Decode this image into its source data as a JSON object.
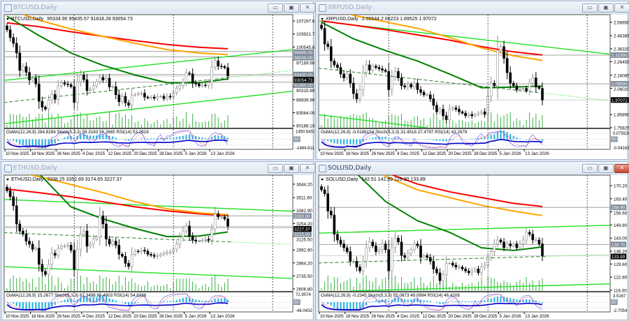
{
  "colors": {
    "ma_slow": "#ff0000",
    "ma_mid": "#ffa500",
    "ma_fast": "#008000",
    "trendline": "#22e022",
    "bull_body": "#ffffff",
    "bear_body": "#000000",
    "osma": "#2ab7ea",
    "rsi": "#0000c8",
    "stoch_main": "#6a6aff",
    "stoch_signal": "#ff3030"
  },
  "time_axis": [
    "10 Nov 2025",
    "18 Nov 2025",
    "26 Nov 2025",
    "4 Dec 2025",
    "12 Dec 2025",
    "20 Dec 2025",
    "28 Dec 2025",
    "5 Jan 2026",
    "13 Jan 2026"
  ],
  "window_buttons": {
    "minimize": "▭",
    "restore": "▣",
    "close": "✕"
  },
  "windows": [
    {
      "title": "BTCUSD,Daily",
      "active": false,
      "symbol": "BTCUSD,Daily",
      "info": "95334.90 95435.57 91818.28 93054.73",
      "ylim": [
        79677,
        108561
      ],
      "ticks": [
        "107297.60",
        "103921.70",
        "100545.80",
        "97169.90",
        "90315.80",
        "86939.90",
        "83564.00",
        "80188.10"
      ],
      "levels": [
        "99400.00",
        "98000.00",
        "93430.00",
        "91450.00"
      ],
      "current": "93054.73",
      "closes": [
        105000,
        103000,
        101500,
        99000,
        94500,
        95500,
        94000,
        92000,
        92500,
        91000,
        86500,
        85000,
        84500,
        86800,
        88300,
        87000,
        90500,
        91300,
        91000,
        90800,
        90300,
        86200,
        91500,
        93300,
        92100,
        89300,
        89600,
        90500,
        91600,
        92700,
        92000,
        92500,
        90200,
        90300,
        88200,
        86400,
        87800,
        86100,
        85500,
        88100,
        88300,
        88500,
        88600,
        87600,
        87400,
        87600,
        87300,
        87700,
        87800,
        87200,
        87800,
        87600,
        88800,
        89900,
        90600,
        91500,
        93800,
        93600,
        91200,
        91000,
        90500,
        90700,
        90600,
        91300,
        95400,
        97000,
        95600,
        95500,
        95200,
        93054.73
      ],
      "ma_dates": [
        "2025-11-10",
        "2025-11-20",
        "2025-11-30",
        "2025-12-10",
        "2025-12-20",
        "2025-12-30",
        "2026-01-09",
        "2026-01-18"
      ],
      "ma_slow": [
        106800,
        105800,
        104500,
        103300,
        102200,
        101200,
        100500,
        100100
      ],
      "ma_mid": [
        110500,
        107500,
        105200,
        103300,
        101500,
        99900,
        99000,
        98600
      ],
      "ma_fast": [
        108500,
        103500,
        99000,
        95800,
        93300,
        91300,
        91300,
        92300
      ],
      "trendlines": [
        {
          "style": "solid",
          "points": [
            [
              "2025-11-09",
              91900
            ],
            [
              "2026-01-22",
              98450
            ]
          ]
        },
        {
          "style": "dashed",
          "points": [
            [
              "2025-11-09",
              86200
            ],
            [
              "2026-01-22",
              93000
            ]
          ]
        },
        {
          "style": "solid",
          "points": [
            [
              "2025-11-09",
              80700
            ],
            [
              "2026-01-22",
              87600
            ]
          ]
        }
      ],
      "indicator": {
        "label": "OsMA(12,26,9) 284.8284  Stoch(5,3,3) 59.3183 56.2665  RSI(14) 53.2916",
        "max": "1450.6457",
        "min": "-1484.8111",
        "mid": "50"
      }
    },
    {
      "title": "XRPUSD,Daily",
      "active": false,
      "symbol": "XRPUSD,Daily",
      "info": "2.05544 2.06223 1.89525 1.97072",
      "ylim": [
        1.75825,
        2.6144
      ],
      "ticks": [
        "2.56650",
        "2.46385",
        "2.36320",
        "2.26455",
        "2.16085",
        "2.06020",
        "1.85890",
        "1.75825"
      ],
      "levels": [
        "2.31500",
        "2.09500"
      ],
      "current": "1.97072",
      "closes": [
        2.52,
        2.4,
        2.38,
        2.27,
        2.24,
        2.22,
        2.17,
        2.14,
        2.17,
        2.1,
        2.02,
        1.98,
        2.05,
        2.18,
        2.24,
        2.2,
        2.23,
        2.22,
        2.21,
        2.2,
        2.19,
        2.05,
        2.15,
        2.19,
        2.14,
        2.08,
        2.07,
        2.09,
        2.07,
        2.1,
        2.05,
        2.03,
        2.01,
        2.01,
        1.98,
        1.93,
        1.88,
        1.9,
        1.85,
        1.82,
        1.9,
        1.91,
        1.9,
        1.88,
        1.87,
        1.85,
        1.86,
        1.85,
        1.86,
        1.87,
        1.88,
        1.86,
        2.0,
        2.1,
        2.08,
        2.35,
        2.38,
        2.29,
        2.18,
        2.1,
        2.08,
        2.05,
        2.06,
        2.06,
        2.04,
        2.1,
        2.14,
        2.07,
        2.06,
        1.97072
      ],
      "ma_dates": [
        "2025-11-10",
        "2025-11-20",
        "2025-11-30",
        "2025-12-10",
        "2025-12-20",
        "2025-12-30",
        "2026-01-09",
        "2026-01-18"
      ],
      "ma_slow": [
        2.577,
        2.545,
        2.51,
        2.47,
        2.43,
        2.38,
        2.34,
        2.316
      ],
      "ma_mid": [
        2.7,
        2.62,
        2.57,
        2.52,
        2.45,
        2.37,
        2.31,
        2.274
      ],
      "ma_fast": [
        2.566,
        2.44,
        2.35,
        2.27,
        2.17,
        2.065,
        2.07,
        2.077
      ],
      "trendlines": [
        {
          "style": "solid",
          "points": [
            [
              "2025-11-09",
              2.577
            ],
            [
              "2026-01-22",
              2.37
            ]
          ]
        },
        {
          "style": "dashed",
          "points": [
            [
              "2025-11-09",
              2.215
            ],
            [
              "2026-01-22",
              2.013
            ]
          ]
        },
        {
          "style": "solid",
          "points": [
            [
              "2025-11-09",
              1.858
            ],
            [
              "2025-12-13",
              1.757
            ]
          ]
        }
      ],
      "indicator": {
        "label": "OsMA(12,26,9) -0.0186154  Stoch(5,3,3) 31.4518 27.4797  RSI(14) 43.2679",
        "max": "0.0755265",
        "min": "-0.041633",
        "mid": "50"
      }
    },
    {
      "title": "ETHUSD,Daily",
      "active": false,
      "symbol": "ETHUSD,Daily",
      "info": "3338.25 3352.89 3174.65 3227.37",
      "ylim": [
        2586.2,
        3719.7
      ],
      "ticks": [
        "3644.20",
        "3511.60",
        "3382.90",
        "3254.20",
        "3125.50",
        "2992.90",
        "2864.20",
        "2735.50",
        "2606.80"
      ],
      "levels": [
        "3330.00",
        "3215.00"
      ],
      "current": "3227.37",
      "closes": [
        3580,
        3520,
        3430,
        3250,
        3180,
        3150,
        3080,
        3050,
        3000,
        3010,
        2850,
        2780,
        2750,
        2850,
        2960,
        2940,
        3010,
        3030,
        3030,
        3040,
        2990,
        2800,
        3000,
        3150,
        3180,
        3030,
        3050,
        3100,
        3120,
        3330,
        3250,
        3100,
        3050,
        3080,
        3040,
        2950,
        2930,
        2860,
        2830,
        2950,
        2980,
        2975,
        2990,
        2980,
        2950,
        2940,
        2930,
        2935,
        2950,
        2960,
        2970,
        2970,
        3000,
        3050,
        3120,
        3180,
        3230,
        3130,
        3090,
        3080,
        3080,
        3090,
        3100,
        3090,
        3200,
        3350,
        3320,
        3320,
        3300,
        3227.37
      ],
      "ma_dates": [
        "2025-11-10",
        "2025-11-20",
        "2025-11-30",
        "2025-12-10",
        "2025-12-20",
        "2025-12-30",
        "2026-01-09",
        "2026-01-18"
      ],
      "ma_slow": [
        3596,
        3560,
        3520,
        3470,
        3420,
        3380,
        3350,
        3335
      ],
      "ma_mid": [
        3780,
        3720,
        3640,
        3560,
        3470,
        3400,
        3360,
        3342
      ],
      "ma_fast": [
        3950,
        3750,
        3420,
        3300,
        3205,
        3125,
        3130,
        3171
      ],
      "trendlines": [
        {
          "style": "solid",
          "points": [
            [
              "2025-11-09",
              3493
            ],
            [
              "2026-01-22",
              3397
            ]
          ]
        },
        {
          "style": "dashed",
          "points": [
            [
              "2025-11-09",
              3164
            ],
            [
              "2026-01-22",
              3068
            ]
          ]
        },
        {
          "style": "solid",
          "points": [
            [
              "2025-11-09",
              2827
            ],
            [
              "2026-01-22",
              2731
            ]
          ]
        }
      ],
      "indicator": {
        "label": "OsMA(12,26,9) 15.2677  Stoch(5,3,3) 67.3498 65.4603  RSI(14) 54.6336",
        "max": "72.9074",
        "min": "-46.0432",
        "mid": "50"
      }
    },
    {
      "title": "SOLUSD,Daily",
      "active": true,
      "symbol": "SOLUSD,Daily",
      "info": "142.51 142.89 129.90 133.89",
      "ylim": [
        115.6,
        174.9
      ],
      "ticks": [
        "170.20",
        "163.40",
        "156.60",
        "149.80",
        "143.00",
        "136.20",
        "129.60",
        "122.80",
        "116.00"
      ],
      "levels": [
        "158.90",
        "139.70"
      ],
      "current": "133.89",
      "closes": [
        168,
        166,
        157,
        155,
        145,
        142,
        140,
        138,
        136,
        131,
        131,
        128,
        126,
        131,
        138,
        141,
        139,
        136,
        137,
        140,
        137,
        126,
        138,
        143,
        141,
        134,
        133,
        135,
        137,
        140,
        139,
        133,
        134,
        133,
        131,
        127,
        125,
        121,
        124,
        130,
        130,
        129,
        128,
        128,
        127,
        126,
        125,
        126,
        127,
        125,
        128,
        129,
        133,
        136,
        140,
        142,
        141,
        138,
        140,
        139,
        140,
        138,
        140,
        142,
        146,
        145,
        142,
        142,
        140,
        133.89
      ],
      "ma_dates": [
        "2025-11-10",
        "2025-11-20",
        "2025-11-30",
        "2025-12-10",
        "2025-12-20",
        "2025-12-30",
        "2026-01-09",
        "2026-01-18"
      ],
      "ma_slow": [
        195,
        188,
        177,
        171,
        167,
        164,
        161,
        159.4
      ],
      "ma_mid": [
        192,
        185,
        175,
        168,
        164,
        160,
        157,
        154.7
      ],
      "ma_fast": [
        190,
        178,
        162,
        152,
        146,
        138,
        136.6,
        138.4
      ],
      "trendlines": [
        {
          "style": "solid",
          "points": [
            [
              "2025-11-09",
              145.6
            ],
            [
              "2026-01-22",
              148.9
            ]
          ]
        },
        {
          "style": "dashed",
          "points": [
            [
              "2025-11-09",
              130.1
            ],
            [
              "2026-01-22",
              133.7
            ]
          ]
        },
        {
          "style": "solid",
          "points": [
            [
              "2025-11-19",
              115.6
            ],
            [
              "2026-01-22",
              118.5
            ]
          ]
        }
      ],
      "indicator": {
        "label": "OsMA(12,26,9) -0.2345  Stoch(5,3,3) 55.0873 49.0894  RSI(14) 46.4208",
        "max": "3.5167",
        "min": "-2.7054",
        "mid": "50"
      }
    }
  ]
}
